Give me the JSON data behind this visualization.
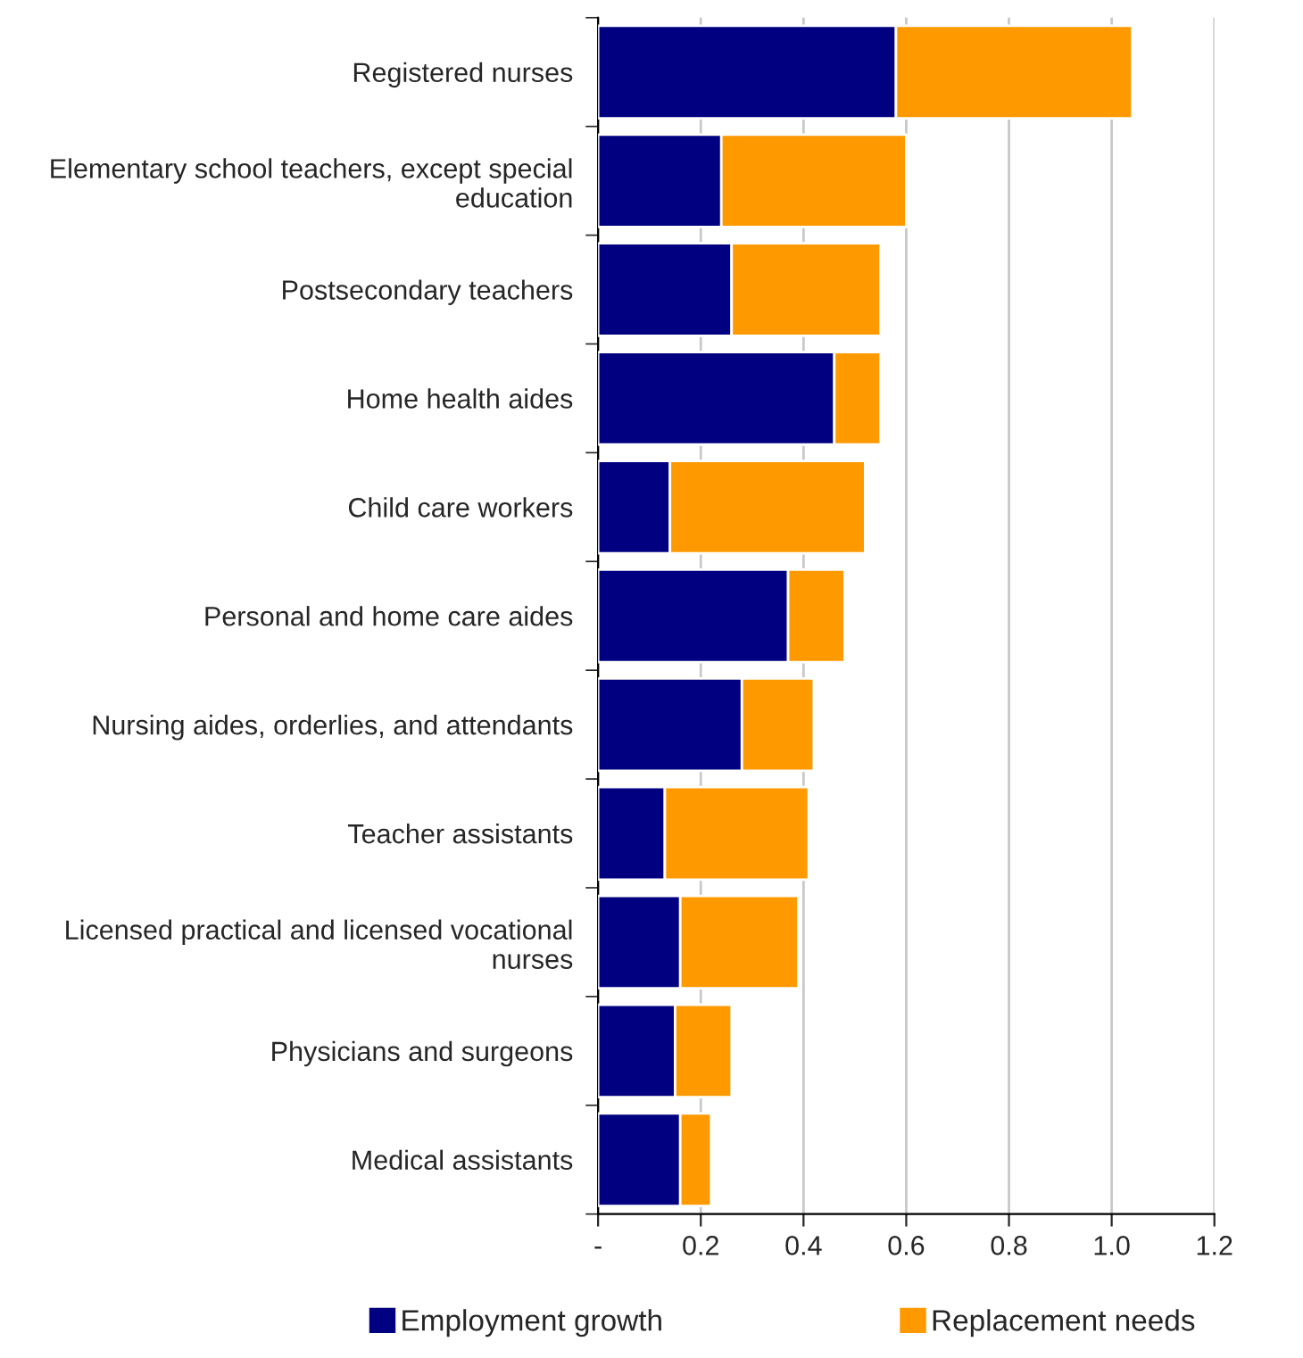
{
  "chart_data": {
    "type": "bar",
    "orientation": "horizontal",
    "stacked": true,
    "categories": [
      "Registered nurses",
      "Elementary school teachers, except special education",
      "Postsecondary teachers",
      "Home health aides",
      "Child care workers",
      "Personal and home care aides",
      "Nursing aides, orderlies, and attendants",
      "Teacher assistants",
      "Licensed practical and licensed vocational nurses",
      "Physicians and surgeons",
      "Medical assistants"
    ],
    "series": [
      {
        "name": "Employment growth",
        "color": "#000080",
        "values": [
          0.58,
          0.24,
          0.26,
          0.46,
          0.14,
          0.37,
          0.28,
          0.13,
          0.16,
          0.15,
          0.16
        ]
      },
      {
        "name": "Replacement needs",
        "color": "#ff9900",
        "values": [
          0.46,
          0.36,
          0.29,
          0.09,
          0.38,
          0.11,
          0.14,
          0.28,
          0.23,
          0.11,
          0.06
        ]
      }
    ],
    "xlim": [
      0,
      1.2
    ],
    "xticks": [
      {
        "value": 0,
        "label": "-"
      },
      0.2,
      0.4,
      0.6,
      0.8,
      {
        "value": 1.0,
        "label": "1.0"
      },
      1.2
    ],
    "grid": "x",
    "legend": "bottom"
  }
}
